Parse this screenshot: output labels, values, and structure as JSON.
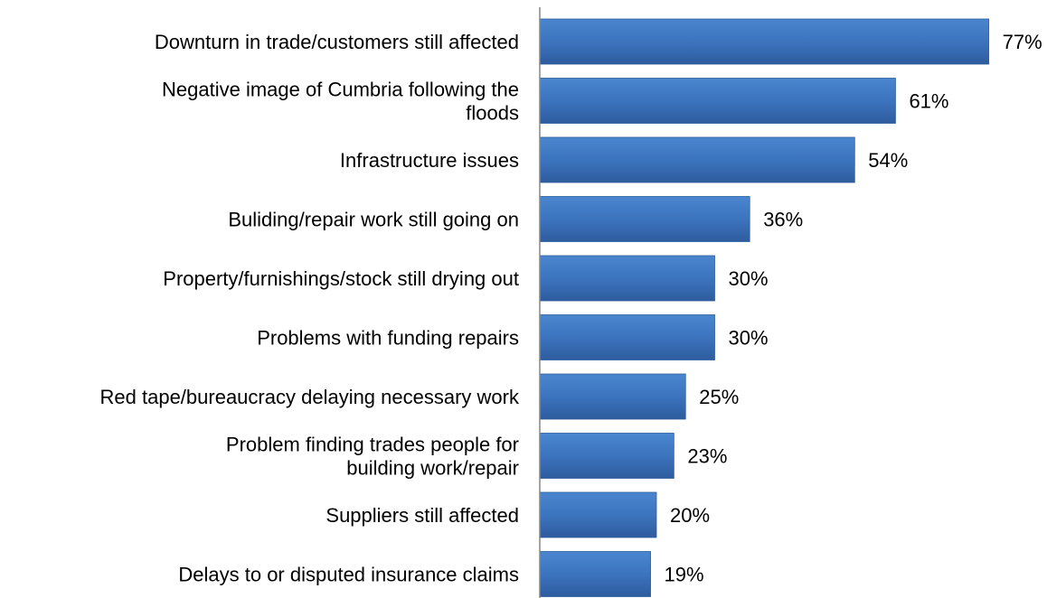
{
  "chart_data": {
    "type": "bar",
    "orientation": "horizontal",
    "categories": [
      "Downturn in trade/customers still affected",
      "Negative image of Cumbria following the floods",
      "Infrastructure issues",
      "Buliding/repair work still going on",
      "Property/furnishings/stock still drying out",
      "Problems with funding repairs",
      "Red tape/bureaucracy delaying necessary work",
      "Problem finding trades people for building work/repair",
      "Suppliers still affected",
      "Delays to or disputed insurance claims"
    ],
    "values": [
      77,
      61,
      54,
      36,
      30,
      30,
      25,
      23,
      20,
      19
    ],
    "value_labels": [
      "77%",
      "61%",
      "54%",
      "36%",
      "30%",
      "30%",
      "25%",
      "23%",
      "20%",
      "19%"
    ],
    "title": "",
    "xlabel": "",
    "ylabel": "",
    "xlim": [
      0,
      100
    ],
    "grid": false,
    "legend": "none",
    "bar_color": "#3F75BD"
  }
}
